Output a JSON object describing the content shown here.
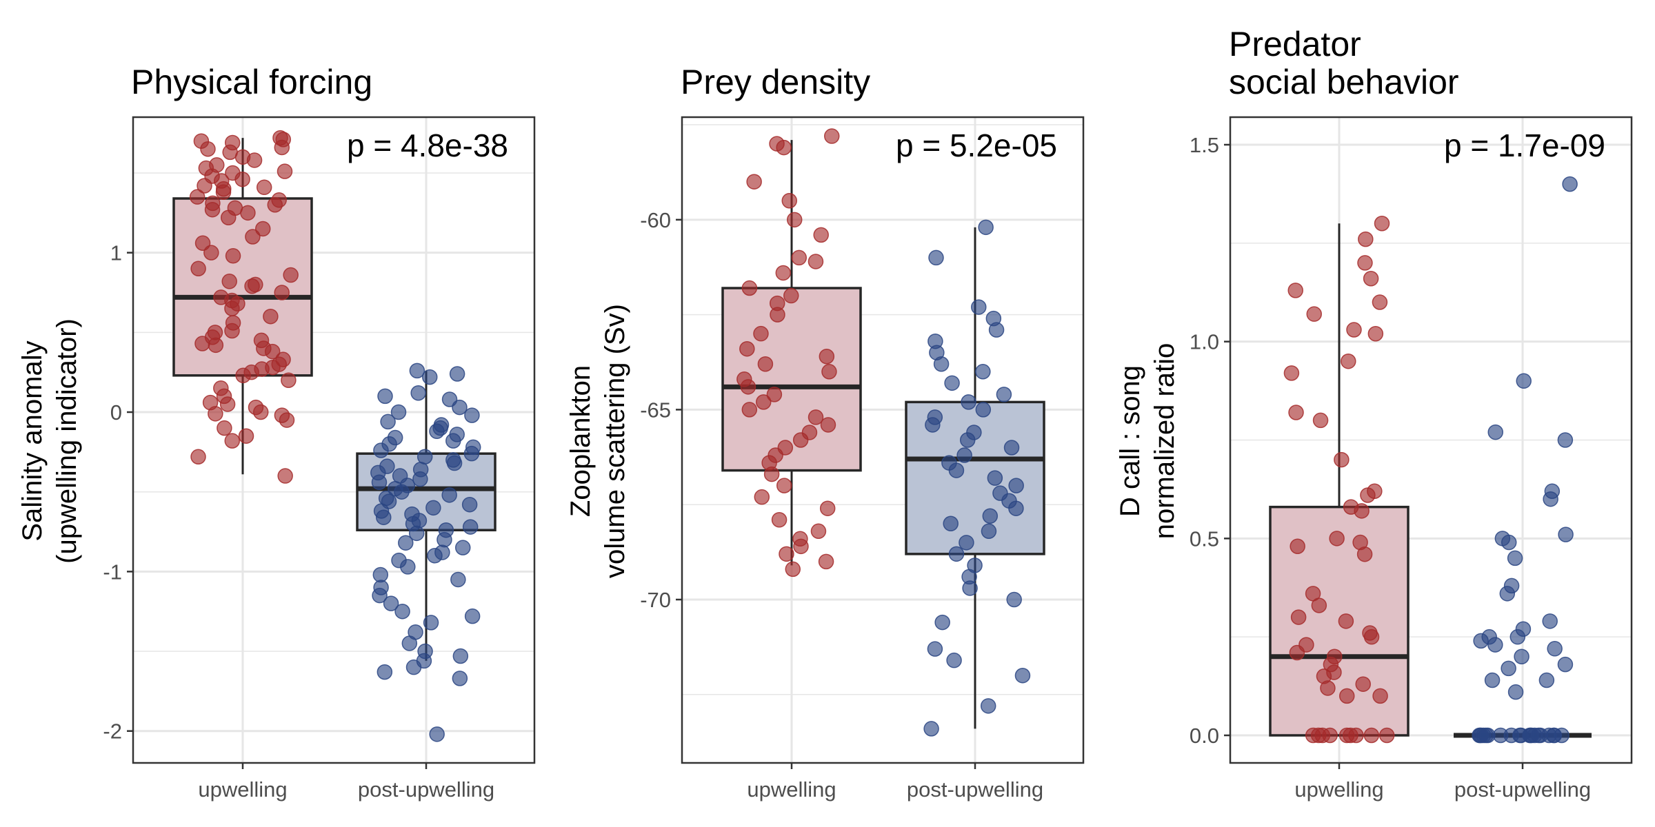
{
  "colors": {
    "upwelling_point": "#A52A2A",
    "upwelling_fill": "#E0C1C6",
    "post_point": "#2A4583",
    "post_fill": "#BAC3D5",
    "box_line": "#262626",
    "grid": "#E6E6E6",
    "frame": "#333333"
  },
  "chart_data": [
    {
      "type": "box",
      "title": "Physical forcing",
      "ylabel": [
        "Salinity anomaly",
        "(upwelling indicator)"
      ],
      "annotation": "p = 4.8e-38",
      "categories": [
        "upwelling",
        "post-upwelling"
      ],
      "ylim": [
        -2.2,
        1.85
      ],
      "yticks": [
        1,
        0,
        -1,
        -2
      ],
      "ytick_labels": [
        "1",
        "0",
        "-1",
        "-2"
      ],
      "boxes": [
        {
          "q1": 0.23,
          "median": 0.72,
          "q3": 1.34,
          "whisker_low": -0.39,
          "whisker_high": 1.72
        },
        {
          "q1": -0.74,
          "median": -0.48,
          "q3": -0.26,
          "whisker_low": -1.56,
          "whisker_high": 0.26
        }
      ],
      "points": [
        [
          1.72,
          1.71,
          1.7,
          1.69,
          1.66,
          1.65,
          1.63,
          1.6,
          1.58,
          1.55,
          1.53,
          1.51,
          1.5,
          1.48,
          1.46,
          1.45,
          1.42,
          1.41,
          1.4,
          1.38,
          1.35,
          1.33,
          1.31,
          1.3,
          1.28,
          1.27,
          1.25,
          1.22,
          1.15,
          1.1,
          1.06,
          1.0,
          0.98,
          0.9,
          0.86,
          0.82,
          0.8,
          0.79,
          0.75,
          0.72,
          0.7,
          0.68,
          0.65,
          0.6,
          0.56,
          0.51,
          0.5,
          0.47,
          0.45,
          0.43,
          0.42,
          0.4,
          0.38,
          0.33,
          0.3,
          0.28,
          0.27,
          0.25,
          0.23,
          0.2,
          0.15,
          0.1,
          0.06,
          0.05,
          0.03,
          0.0,
          -0.01,
          -0.02,
          -0.05,
          -0.1,
          -0.15,
          -0.18,
          -0.28,
          -0.4
        ],
        [
          0.26,
          0.24,
          0.22,
          0.12,
          0.1,
          0.08,
          0.03,
          0.0,
          -0.02,
          -0.06,
          -0.08,
          -0.1,
          -0.12,
          -0.14,
          -0.16,
          -0.18,
          -0.2,
          -0.22,
          -0.24,
          -0.26,
          -0.28,
          -0.3,
          -0.32,
          -0.34,
          -0.36,
          -0.38,
          -0.4,
          -0.42,
          -0.44,
          -0.46,
          -0.48,
          -0.5,
          -0.52,
          -0.54,
          -0.56,
          -0.58,
          -0.6,
          -0.62,
          -0.64,
          -0.66,
          -0.68,
          -0.7,
          -0.72,
          -0.74,
          -0.76,
          -0.8,
          -0.82,
          -0.85,
          -0.88,
          -0.9,
          -0.93,
          -0.97,
          -1.02,
          -1.05,
          -1.1,
          -1.15,
          -1.2,
          -1.25,
          -1.28,
          -1.32,
          -1.38,
          -1.45,
          -1.5,
          -1.53,
          -1.56,
          -1.6,
          -1.63,
          -1.67,
          -2.02
        ]
      ]
    },
    {
      "type": "box",
      "title": "Prey density",
      "ylabel": [
        "Zooplankton",
        "volume scattering (Sv)"
      ],
      "annotation": "p = 5.2e-05",
      "categories": [
        "upwelling",
        "post-upwelling"
      ],
      "ylim": [
        -74.3,
        -57.3
      ],
      "yticks": [
        -60,
        -65,
        -70
      ],
      "ytick_labels": [
        "-60",
        "-65",
        "-70"
      ],
      "boxes": [
        {
          "q1": -66.6,
          "median": -64.4,
          "q3": -61.8,
          "whisker_low": -69.1,
          "whisker_high": -57.9
        },
        {
          "q1": -68.8,
          "median": -66.3,
          "q3": -64.8,
          "whisker_low": -73.4,
          "whisker_high": -60.2
        }
      ],
      "points": [
        [
          -57.8,
          -58.0,
          -58.1,
          -59.0,
          -59.5,
          -60.0,
          -60.4,
          -61.0,
          -61.1,
          -61.4,
          -61.8,
          -62.0,
          -62.2,
          -62.5,
          -63.0,
          -63.4,
          -63.6,
          -63.8,
          -64.0,
          -64.2,
          -64.4,
          -64.6,
          -64.8,
          -65.0,
          -65.2,
          -65.4,
          -65.6,
          -65.8,
          -66.0,
          -66.2,
          -66.4,
          -66.7,
          -67.0,
          -67.3,
          -67.6,
          -67.9,
          -68.2,
          -68.4,
          -68.6,
          -68.8,
          -69.0,
          -69.2
        ],
        [
          -60.2,
          -61.0,
          -62.3,
          -62.6,
          -62.9,
          -63.2,
          -63.5,
          -63.8,
          -64.0,
          -64.3,
          -64.6,
          -64.8,
          -65.0,
          -65.2,
          -65.4,
          -65.6,
          -65.8,
          -66.0,
          -66.2,
          -66.4,
          -66.6,
          -66.8,
          -67.0,
          -67.2,
          -67.4,
          -67.6,
          -67.8,
          -68.0,
          -68.2,
          -68.5,
          -68.8,
          -69.1,
          -69.4,
          -69.7,
          -70.0,
          -70.6,
          -71.3,
          -71.6,
          -72.0,
          -72.8,
          -73.4
        ]
      ]
    },
    {
      "type": "box",
      "title": [
        "Predator",
        "social behavior"
      ],
      "ylabel": [
        "D call : song",
        "normalized ratio"
      ],
      "annotation": "p = 1.7e-09",
      "categories": [
        "upwelling",
        "post-upwelling"
      ],
      "ylim": [
        -0.07,
        1.57
      ],
      "yticks": [
        1.5,
        1.0,
        0.5,
        0.0
      ],
      "ytick_labels": [
        "1.5",
        "1.0",
        "0.5",
        "0.0"
      ],
      "boxes": [
        {
          "q1": 0.0,
          "median": 0.2,
          "q3": 0.58,
          "whisker_low": 0.0,
          "whisker_high": 1.3
        },
        {
          "q1": 0.0,
          "median": 0.0,
          "q3": 0.0,
          "whisker_low": 0.0,
          "whisker_high": 0.0
        }
      ],
      "points": [
        [
          1.3,
          1.26,
          1.2,
          1.16,
          1.13,
          1.1,
          1.07,
          1.03,
          1.02,
          0.95,
          0.92,
          0.82,
          0.8,
          0.7,
          0.62,
          0.61,
          0.58,
          0.57,
          0.5,
          0.49,
          0.48,
          0.46,
          0.36,
          0.33,
          0.3,
          0.29,
          0.26,
          0.25,
          0.23,
          0.21,
          0.2,
          0.18,
          0.16,
          0.15,
          0.13,
          0.12,
          0.1,
          0.1,
          0.0,
          0.0,
          0.0,
          0.0,
          0.0,
          0.0,
          0.0,
          0.0,
          0.0
        ],
        [
          1.4,
          0.9,
          0.77,
          0.75,
          0.62,
          0.6,
          0.51,
          0.5,
          0.49,
          0.45,
          0.38,
          0.36,
          0.29,
          0.27,
          0.25,
          0.25,
          0.24,
          0.23,
          0.22,
          0.2,
          0.18,
          0.17,
          0.14,
          0.14,
          0.11,
          0.0,
          0.0,
          0.0,
          0.0,
          0.0,
          0.0,
          0.0,
          0.0,
          0.0,
          0.0,
          0.0,
          0.0,
          0.0,
          0.0,
          0.0,
          0.0,
          0.0,
          0.0,
          0.0,
          0.0
        ]
      ]
    }
  ]
}
